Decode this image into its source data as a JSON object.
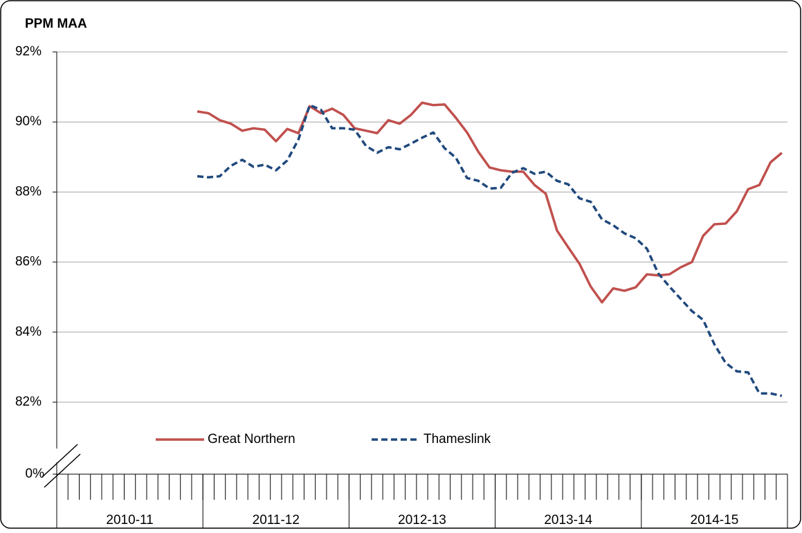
{
  "chart_data": {
    "type": "line",
    "title": "PPM MAA",
    "categories": [
      null,
      null,
      null,
      null,
      null,
      null,
      null,
      null,
      null,
      null,
      null,
      null,
      null,
      null,
      null,
      null,
      null,
      null,
      null,
      null,
      null,
      null,
      null,
      null,
      null,
      null,
      null,
      null,
      null,
      null,
      null,
      null,
      null,
      null,
      null,
      null,
      null,
      null,
      null,
      null,
      null,
      null,
      null,
      null,
      null,
      null,
      null,
      null,
      null,
      null,
      null,
      null,
      null,
      null,
      null,
      null,
      null,
      null,
      null,
      null,
      null,
      null,
      null,
      null,
      null
    ],
    "groups": [
      "2010-11",
      "2011-12",
      "2012-13",
      "2013-14",
      "2014-15"
    ],
    "series": [
      {
        "name": "Great Northern",
        "color": "#c0504d",
        "dashed": false,
        "values": [
          null,
          null,
          null,
          null,
          null,
          null,
          null,
          null,
          null,
          null,
          null,
          null,
          90.3,
          90.25,
          90.05,
          89.95,
          89.75,
          89.82,
          89.78,
          89.45,
          89.8,
          89.68,
          90.45,
          90.25,
          90.38,
          90.2,
          89.82,
          89.75,
          89.68,
          90.05,
          89.95,
          90.2,
          90.55,
          90.48,
          90.5,
          90.12,
          89.7,
          89.15,
          88.7,
          88.62,
          88.58,
          88.58,
          88.2,
          87.95,
          86.9,
          86.42,
          85.95,
          85.3,
          84.85,
          85.25,
          85.18,
          85.28,
          85.65,
          85.62,
          85.65,
          85.85,
          86.0,
          86.75,
          87.08,
          87.1,
          87.45,
          88.08,
          88.2,
          88.85,
          89.12
        ]
      },
      {
        "name": "Thameslink",
        "color": "#1f497d",
        "dashed": true,
        "values": [
          null,
          null,
          null,
          null,
          null,
          null,
          null,
          null,
          null,
          null,
          null,
          null,
          88.45,
          88.42,
          88.45,
          88.75,
          88.92,
          88.72,
          88.78,
          88.62,
          88.9,
          89.5,
          90.48,
          90.35,
          89.82,
          89.82,
          89.78,
          89.32,
          89.12,
          89.28,
          89.22,
          89.38,
          89.55,
          89.7,
          89.25,
          88.98,
          88.4,
          88.32,
          88.1,
          88.12,
          88.55,
          88.68,
          88.52,
          88.58,
          88.32,
          88.22,
          87.82,
          87.72,
          87.22,
          87.05,
          86.82,
          86.68,
          86.38,
          85.68,
          85.3,
          84.95,
          84.6,
          84.35,
          83.65,
          83.12,
          82.88,
          82.85,
          82.25,
          82.25,
          82.18
        ]
      }
    ],
    "ylim": [
      82,
      92
    ],
    "yticks": [
      {
        "value": 82,
        "label": "82%"
      },
      {
        "value": 84,
        "label": "84%"
      },
      {
        "value": 86,
        "label": "86%"
      },
      {
        "value": 88,
        "label": "88%"
      },
      {
        "value": 90,
        "label": "90%"
      },
      {
        "value": 92,
        "label": "92%"
      }
    ],
    "axis_break": {
      "value": 0,
      "label": "0%"
    },
    "grid": true
  }
}
